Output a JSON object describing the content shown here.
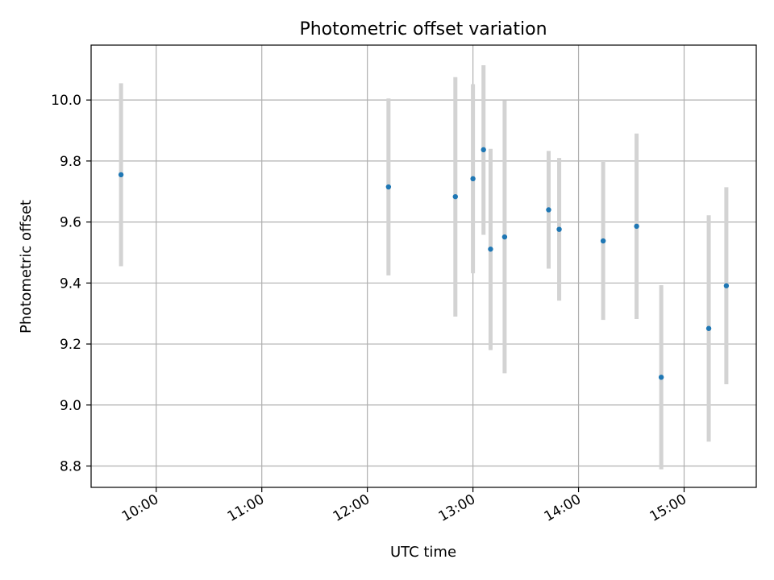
{
  "chart_data": {
    "type": "scatter",
    "title": "Photometric offset variation",
    "xlabel": "UTC time",
    "ylabel": "Photometric offset",
    "x_axis_kind": "time",
    "xlim": [
      "09:23",
      "15:41"
    ],
    "ylim": [
      8.73,
      10.18
    ],
    "x_ticks": [
      "10:00",
      "11:00",
      "12:00",
      "13:00",
      "14:00",
      "15:00"
    ],
    "y_ticks": [
      8.8,
      9.0,
      9.2,
      9.4,
      9.6,
      9.8,
      10.0
    ],
    "grid": true,
    "marker_color": "#1f77b4",
    "errorbar_color": "#d3d3d3",
    "points": [
      {
        "x": "09:40",
        "y": 9.755,
        "err_low": 9.455,
        "err_high": 10.055
      },
      {
        "x": "12:12",
        "y": 9.715,
        "err_low": 9.425,
        "err_high": 10.005
      },
      {
        "x": "12:50",
        "y": 9.683,
        "err_low": 9.29,
        "err_high": 10.075
      },
      {
        "x": "13:00",
        "y": 9.742,
        "err_low": 9.432,
        "err_high": 10.052
      },
      {
        "x": "13:06",
        "y": 9.837,
        "err_low": 9.558,
        "err_high": 10.114
      },
      {
        "x": "13:10",
        "y": 9.511,
        "err_low": 9.18,
        "err_high": 9.84
      },
      {
        "x": "13:18",
        "y": 9.551,
        "err_low": 9.104,
        "err_high": 9.998
      },
      {
        "x": "13:43",
        "y": 9.64,
        "err_low": 9.447,
        "err_high": 9.833
      },
      {
        "x": "13:49",
        "y": 9.576,
        "err_low": 9.342,
        "err_high": 9.81
      },
      {
        "x": "14:14",
        "y": 9.538,
        "err_low": 9.279,
        "err_high": 9.797
      },
      {
        "x": "14:33",
        "y": 9.586,
        "err_low": 9.282,
        "err_high": 9.89
      },
      {
        "x": "14:47",
        "y": 9.091,
        "err_low": 8.789,
        "err_high": 9.393
      },
      {
        "x": "15:14",
        "y": 9.251,
        "err_low": 8.88,
        "err_high": 9.622
      },
      {
        "x": "15:24",
        "y": 9.391,
        "err_low": 9.068,
        "err_high": 9.714
      }
    ]
  }
}
